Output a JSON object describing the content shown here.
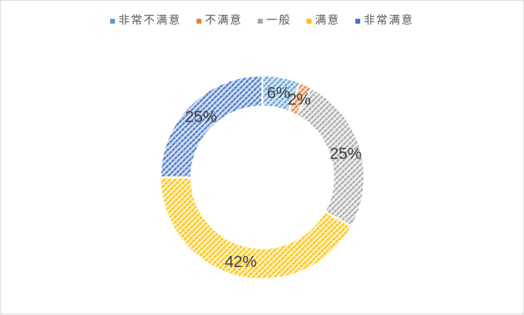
{
  "page": {
    "background_color": "#ffffff",
    "border_color": "#d6d6d6"
  },
  "chart_data": {
    "type": "pie",
    "subtype": "doughnut",
    "title": "",
    "categories": [
      "非常不满意",
      "不满意",
      "一般",
      "满意",
      "非常满意"
    ],
    "values": [
      6,
      2,
      25,
      42,
      25
    ],
    "data_labels": [
      "6%",
      "2%",
      "25%",
      "42%",
      "25%"
    ],
    "unit": "%",
    "series_colors": [
      "#5B9BD5",
      "#ED7D31",
      "#A5A5A5",
      "#FFC000",
      "#4472C4"
    ],
    "pattern_bg_colors": [
      "#DEEBF7",
      "#FAE3D4",
      "#F1F1F1",
      "#FFF3CC",
      "#D8E2F4"
    ],
    "pattern_style": "diagonal-dotted-stripes-up-right",
    "start_angle_deg": 0,
    "clockwise": true,
    "hole_ratio": 0.7,
    "slice_gap_color": "#ffffff",
    "legend_position": "top",
    "legend_text_color": "#595959",
    "data_label_color": "#404040"
  }
}
